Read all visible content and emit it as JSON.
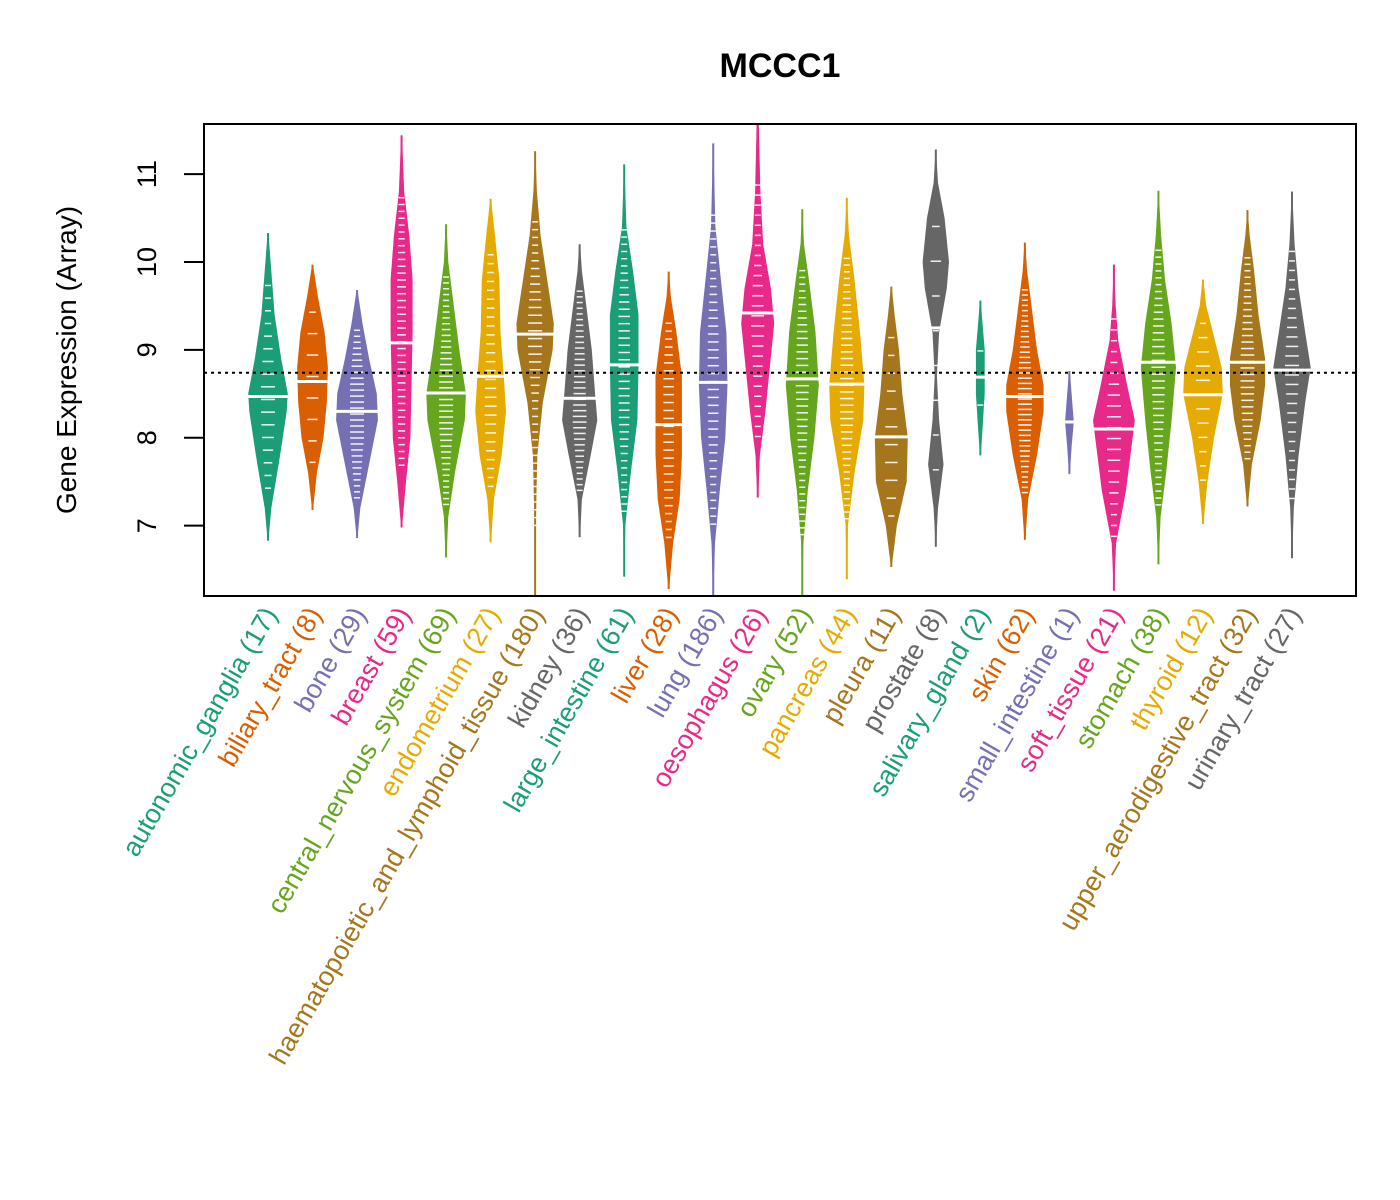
{
  "chart_data": {
    "type": "violin",
    "title": "MCCC1",
    "xlabel": "",
    "ylabel": "Gene Expression (Array)",
    "ylim": [
      6.2,
      11.57
    ],
    "yticks": [
      7,
      8,
      9,
      10,
      11
    ],
    "reference_line": {
      "value": 8.74,
      "style": "dotted",
      "color": "#000000"
    },
    "grid": false,
    "legend": "none",
    "palette": [
      "#1B9E77",
      "#D95F02",
      "#7570B3",
      "#E7298A",
      "#66A61E",
      "#E6AB02",
      "#A6761D",
      "#666666"
    ],
    "categories": [
      {
        "name": "autonomic_ganglia",
        "n": 17,
        "label": "autonomic_ganglia (17)",
        "color": "#1B9E77",
        "min": 6.83,
        "max": 10.33,
        "median": 8.47,
        "profile": [
          [
            6.83,
            0.02
          ],
          [
            7.2,
            0.15
          ],
          [
            7.8,
            0.55
          ],
          [
            8.3,
            0.85
          ],
          [
            8.5,
            0.9
          ],
          [
            8.9,
            0.6
          ],
          [
            9.4,
            0.3
          ],
          [
            9.9,
            0.15
          ],
          [
            10.33,
            0.02
          ]
        ]
      },
      {
        "name": "biliary_tract",
        "n": 8,
        "label": "biliary_tract (8)",
        "color": "#D95F02",
        "min": 7.18,
        "max": 9.97,
        "median": 8.64,
        "profile": [
          [
            7.18,
            0.02
          ],
          [
            7.6,
            0.2
          ],
          [
            8.0,
            0.5
          ],
          [
            8.4,
            0.65
          ],
          [
            8.8,
            0.7
          ],
          [
            9.2,
            0.55
          ],
          [
            9.6,
            0.25
          ],
          [
            9.97,
            0.02
          ]
        ]
      },
      {
        "name": "bone",
        "n": 29,
        "label": "bone (29)",
        "color": "#7570B3",
        "min": 6.86,
        "max": 9.68,
        "median": 8.3,
        "profile": [
          [
            6.86,
            0.02
          ],
          [
            7.2,
            0.15
          ],
          [
            7.7,
            0.55
          ],
          [
            8.2,
            0.95
          ],
          [
            8.5,
            0.9
          ],
          [
            8.9,
            0.55
          ],
          [
            9.3,
            0.25
          ],
          [
            9.68,
            0.02
          ]
        ]
      },
      {
        "name": "breast",
        "n": 59,
        "label": "breast (59)",
        "color": "#E7298A",
        "min": 6.98,
        "max": 11.44,
        "median": 9.08,
        "profile": [
          [
            6.98,
            0.02
          ],
          [
            7.5,
            0.2
          ],
          [
            8.0,
            0.4
          ],
          [
            8.6,
            0.45
          ],
          [
            9.2,
            0.5
          ],
          [
            9.8,
            0.5
          ],
          [
            10.3,
            0.35
          ],
          [
            10.8,
            0.12
          ],
          [
            11.44,
            0.02
          ]
        ]
      },
      {
        "name": "central_nervous_system",
        "n": 69,
        "label": "central_nervous_system (69)",
        "color": "#66A61E",
        "min": 6.64,
        "max": 10.43,
        "median": 8.51,
        "profile": [
          [
            6.64,
            0.02
          ],
          [
            7.1,
            0.1
          ],
          [
            7.6,
            0.4
          ],
          [
            8.2,
            0.85
          ],
          [
            8.5,
            0.9
          ],
          [
            9.0,
            0.6
          ],
          [
            9.5,
            0.35
          ],
          [
            10.0,
            0.1
          ],
          [
            10.43,
            0.02
          ]
        ]
      },
      {
        "name": "endometrium",
        "n": 27,
        "label": "endometrium (27)",
        "color": "#E6AB02",
        "min": 6.81,
        "max": 10.72,
        "median": 8.7,
        "profile": [
          [
            6.81,
            0.02
          ],
          [
            7.3,
            0.15
          ],
          [
            7.8,
            0.5
          ],
          [
            8.3,
            0.7
          ],
          [
            8.7,
            0.6
          ],
          [
            9.2,
            0.45
          ],
          [
            9.8,
            0.4
          ],
          [
            10.3,
            0.2
          ],
          [
            10.72,
            0.02
          ]
        ]
      },
      {
        "name": "haematopoietic_and_lymphoid_tissue",
        "n": 180,
        "label": "haematopoietic_and_lymphoid_tissue (180)",
        "color": "#A6761D",
        "min": 6.2,
        "max": 11.26,
        "median": 9.18,
        "profile": [
          [
            6.2,
            0.01
          ],
          [
            7.0,
            0.03
          ],
          [
            7.8,
            0.1
          ],
          [
            8.4,
            0.35
          ],
          [
            9.0,
            0.8
          ],
          [
            9.3,
            0.85
          ],
          [
            9.8,
            0.55
          ],
          [
            10.3,
            0.25
          ],
          [
            10.8,
            0.08
          ],
          [
            11.26,
            0.01
          ]
        ]
      },
      {
        "name": "kidney",
        "n": 36,
        "label": "kidney (36)",
        "color": "#666666",
        "min": 6.87,
        "max": 10.2,
        "median": 8.45,
        "profile": [
          [
            6.87,
            0.02
          ],
          [
            7.3,
            0.1
          ],
          [
            7.8,
            0.5
          ],
          [
            8.2,
            0.8
          ],
          [
            8.5,
            0.7
          ],
          [
            9.0,
            0.55
          ],
          [
            9.5,
            0.3
          ],
          [
            9.9,
            0.1
          ],
          [
            10.2,
            0.02
          ]
        ]
      },
      {
        "name": "large_intestine",
        "n": 61,
        "label": "large_intestine (61)",
        "color": "#1B9E77",
        "min": 6.42,
        "max": 11.11,
        "median": 8.83,
        "profile": [
          [
            6.42,
            0.01
          ],
          [
            7.0,
            0.05
          ],
          [
            7.6,
            0.3
          ],
          [
            8.2,
            0.6
          ],
          [
            8.8,
            0.65
          ],
          [
            9.4,
            0.65
          ],
          [
            9.9,
            0.4
          ],
          [
            10.4,
            0.1
          ],
          [
            11.11,
            0.01
          ]
        ]
      },
      {
        "name": "liver",
        "n": 28,
        "label": "liver (28)",
        "color": "#D95F02",
        "min": 6.28,
        "max": 9.89,
        "median": 8.15,
        "profile": [
          [
            6.28,
            0.02
          ],
          [
            6.8,
            0.2
          ],
          [
            7.3,
            0.5
          ],
          [
            7.8,
            0.6
          ],
          [
            8.2,
            0.6
          ],
          [
            8.7,
            0.6
          ],
          [
            9.2,
            0.35
          ],
          [
            9.6,
            0.1
          ],
          [
            9.89,
            0.02
          ]
        ]
      },
      {
        "name": "lung",
        "n": 186,
        "label": "lung (186)",
        "color": "#7570B3",
        "min": 6.2,
        "max": 11.35,
        "median": 8.63,
        "profile": [
          [
            6.2,
            0.01
          ],
          [
            6.8,
            0.08
          ],
          [
            7.4,
            0.3
          ],
          [
            8.0,
            0.55
          ],
          [
            8.6,
            0.65
          ],
          [
            9.2,
            0.6
          ],
          [
            9.8,
            0.35
          ],
          [
            10.4,
            0.1
          ],
          [
            11.35,
            0.01
          ]
        ]
      },
      {
        "name": "oesophagus",
        "n": 26,
        "label": "oesophagus (26)",
        "color": "#E7298A",
        "min": 7.32,
        "max": 11.57,
        "median": 9.42,
        "profile": [
          [
            7.32,
            0.02
          ],
          [
            7.8,
            0.1
          ],
          [
            8.3,
            0.35
          ],
          [
            8.8,
            0.55
          ],
          [
            9.3,
            0.75
          ],
          [
            9.7,
            0.6
          ],
          [
            10.2,
            0.25
          ],
          [
            10.8,
            0.12
          ],
          [
            11.57,
            0.05
          ]
        ]
      },
      {
        "name": "ovary",
        "n": 52,
        "label": "ovary (52)",
        "color": "#66A61E",
        "min": 6.2,
        "max": 10.6,
        "median": 8.67,
        "profile": [
          [
            6.2,
            0.01
          ],
          [
            6.8,
            0.05
          ],
          [
            7.4,
            0.25
          ],
          [
            8.0,
            0.55
          ],
          [
            8.6,
            0.75
          ],
          [
            9.2,
            0.6
          ],
          [
            9.8,
            0.3
          ],
          [
            10.2,
            0.08
          ],
          [
            10.6,
            0.01
          ]
        ]
      },
      {
        "name": "pancreas",
        "n": 44,
        "label": "pancreas (44)",
        "color": "#E6AB02",
        "min": 6.39,
        "max": 10.73,
        "median": 8.61,
        "profile": [
          [
            6.39,
            0.01
          ],
          [
            7.0,
            0.05
          ],
          [
            7.6,
            0.35
          ],
          [
            8.2,
            0.75
          ],
          [
            8.6,
            0.8
          ],
          [
            9.2,
            0.6
          ],
          [
            9.8,
            0.35
          ],
          [
            10.3,
            0.1
          ],
          [
            10.73,
            0.01
          ]
        ]
      },
      {
        "name": "pleura",
        "n": 11,
        "label": "pleura (11)",
        "color": "#A6761D",
        "min": 6.53,
        "max": 9.72,
        "median": 8.01,
        "profile": [
          [
            6.53,
            0.02
          ],
          [
            7.0,
            0.25
          ],
          [
            7.5,
            0.7
          ],
          [
            8.0,
            0.75
          ],
          [
            8.5,
            0.5
          ],
          [
            9.0,
            0.35
          ],
          [
            9.4,
            0.15
          ],
          [
            9.72,
            0.02
          ]
        ]
      },
      {
        "name": "prostate",
        "n": 8,
        "label": "prostate (8)",
        "color": "#666666",
        "min": 6.76,
        "max": 11.28,
        "median": 9.25,
        "profile": [
          [
            6.76,
            0.01
          ],
          [
            7.2,
            0.1
          ],
          [
            7.7,
            0.35
          ],
          [
            8.2,
            0.15
          ],
          [
            8.7,
            0.05
          ],
          [
            9.2,
            0.15
          ],
          [
            9.7,
            0.5
          ],
          [
            10.0,
            0.6
          ],
          [
            10.5,
            0.4
          ],
          [
            10.9,
            0.1
          ],
          [
            11.28,
            0.01
          ]
        ]
      },
      {
        "name": "salivary_gland",
        "n": 2,
        "label": "salivary_gland (2)",
        "color": "#1B9E77",
        "min": 7.8,
        "max": 9.56,
        "median": 8.69,
        "profile": [
          [
            7.8,
            0.02
          ],
          [
            8.1,
            0.1
          ],
          [
            8.5,
            0.2
          ],
          [
            8.7,
            0.2
          ],
          [
            9.0,
            0.2
          ],
          [
            9.3,
            0.1
          ],
          [
            9.56,
            0.02
          ]
        ]
      },
      {
        "name": "skin",
        "n": 62,
        "label": "skin (62)",
        "color": "#D95F02",
        "min": 6.84,
        "max": 10.22,
        "median": 8.47,
        "profile": [
          [
            6.84,
            0.02
          ],
          [
            7.3,
            0.15
          ],
          [
            7.8,
            0.55
          ],
          [
            8.3,
            0.85
          ],
          [
            8.6,
            0.85
          ],
          [
            9.0,
            0.55
          ],
          [
            9.5,
            0.3
          ],
          [
            9.9,
            0.1
          ],
          [
            10.22,
            0.02
          ]
        ]
      },
      {
        "name": "small_intestine",
        "n": 1,
        "label": "small_intestine (1)",
        "color": "#7570B3",
        "min": 7.59,
        "max": 8.76,
        "median": 8.18,
        "profile": [
          [
            7.59,
            0.02
          ],
          [
            7.9,
            0.1
          ],
          [
            8.18,
            0.2
          ],
          [
            8.5,
            0.1
          ],
          [
            8.76,
            0.02
          ]
        ]
      },
      {
        "name": "soft_tissue",
        "n": 21,
        "label": "soft_tissue (21)",
        "color": "#E7298A",
        "min": 6.26,
        "max": 9.97,
        "median": 8.1,
        "profile": [
          [
            6.26,
            0.01
          ],
          [
            6.8,
            0.1
          ],
          [
            7.4,
            0.55
          ],
          [
            7.9,
            0.8
          ],
          [
            8.2,
            0.95
          ],
          [
            8.6,
            0.6
          ],
          [
            9.1,
            0.2
          ],
          [
            9.5,
            0.08
          ],
          [
            9.97,
            0.01
          ]
        ]
      },
      {
        "name": "stomach",
        "n": 38,
        "label": "stomach (38)",
        "color": "#66A61E",
        "min": 6.56,
        "max": 10.81,
        "median": 8.86,
        "profile": [
          [
            6.56,
            0.01
          ],
          [
            7.1,
            0.1
          ],
          [
            7.6,
            0.35
          ],
          [
            8.2,
            0.6
          ],
          [
            8.8,
            0.8
          ],
          [
            9.3,
            0.6
          ],
          [
            9.8,
            0.3
          ],
          [
            10.3,
            0.12
          ],
          [
            10.81,
            0.01
          ]
        ]
      },
      {
        "name": "thyroid",
        "n": 12,
        "label": "thyroid (12)",
        "color": "#E6AB02",
        "min": 7.02,
        "max": 9.8,
        "median": 8.49,
        "profile": [
          [
            7.02,
            0.02
          ],
          [
            7.5,
            0.2
          ],
          [
            8.0,
            0.5
          ],
          [
            8.5,
            0.9
          ],
          [
            8.8,
            0.85
          ],
          [
            9.2,
            0.45
          ],
          [
            9.5,
            0.15
          ],
          [
            9.8,
            0.02
          ]
        ]
      },
      {
        "name": "upper_aerodigestive_tract",
        "n": 32,
        "label": "upper_aerodigestive_tract (32)",
        "color": "#A6761D",
        "min": 7.22,
        "max": 10.59,
        "median": 8.86,
        "profile": [
          [
            7.22,
            0.02
          ],
          [
            7.7,
            0.2
          ],
          [
            8.2,
            0.6
          ],
          [
            8.6,
            0.8
          ],
          [
            8.9,
            0.8
          ],
          [
            9.4,
            0.5
          ],
          [
            9.9,
            0.3
          ],
          [
            10.3,
            0.1
          ],
          [
            10.59,
            0.01
          ]
        ]
      },
      {
        "name": "urinary_tract",
        "n": 27,
        "label": "urinary_tract (27)",
        "color": "#666666",
        "min": 6.63,
        "max": 10.8,
        "median": 8.77,
        "profile": [
          [
            6.63,
            0.01
          ],
          [
            7.2,
            0.08
          ],
          [
            7.8,
            0.3
          ],
          [
            8.4,
            0.6
          ],
          [
            8.8,
            0.85
          ],
          [
            9.2,
            0.6
          ],
          [
            9.7,
            0.3
          ],
          [
            10.2,
            0.12
          ],
          [
            10.8,
            0.01
          ]
        ]
      }
    ]
  }
}
